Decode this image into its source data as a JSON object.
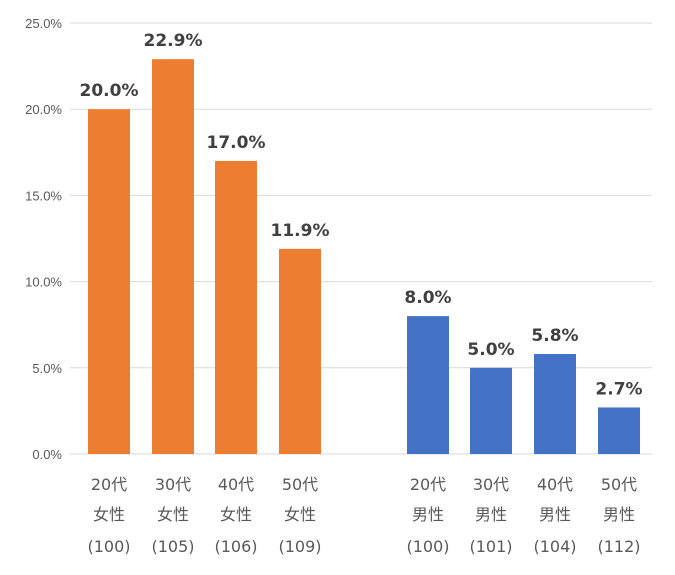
{
  "chart_data": {
    "type": "bar",
    "categories": [
      {
        "lines": [
          "20代",
          "女性",
          "(100)"
        ],
        "group": "female"
      },
      {
        "lines": [
          "30代",
          "女性",
          "(105)"
        ],
        "group": "female"
      },
      {
        "lines": [
          "40代",
          "女性",
          "(106)"
        ],
        "group": "female"
      },
      {
        "lines": [
          "50代",
          "女性",
          "(109)"
        ],
        "group": "female"
      },
      {
        "lines": [
          "20代",
          "男性",
          "(100)"
        ],
        "group": "male"
      },
      {
        "lines": [
          "30代",
          "男性",
          "(101)"
        ],
        "group": "male"
      },
      {
        "lines": [
          "40代",
          "男性",
          "(104)"
        ],
        "group": "male"
      },
      {
        "lines": [
          "50代",
          "男性",
          "(112)"
        ],
        "group": "male"
      }
    ],
    "values": [
      20.0,
      22.9,
      17.0,
      11.9,
      8.0,
      5.0,
      5.8,
      2.7
    ],
    "data_labels": [
      "20.0%",
      "22.9%",
      "17.0%",
      "11.9%",
      "8.0%",
      "5.0%",
      "5.8%",
      "2.7%"
    ],
    "ylim": [
      0,
      25
    ],
    "yticks": [
      0,
      5,
      10,
      15,
      20,
      25
    ],
    "ytick_labels": [
      "0.0%",
      "5.0%",
      "10.0%",
      "15.0%",
      "20.0%",
      "25.0%"
    ],
    "title": "",
    "xlabel": "",
    "ylabel": "",
    "grid": true,
    "legend": "none",
    "colors": {
      "female": "#ED7D31",
      "male": "#4472C4",
      "grid": "#D9D9D9"
    }
  }
}
